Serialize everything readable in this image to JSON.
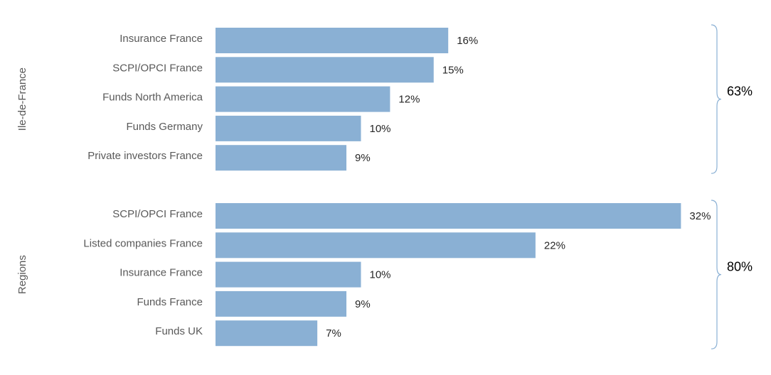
{
  "chart_data": [
    {
      "type": "bar",
      "orientation": "horizontal",
      "group": "Ile-de-France",
      "categories": [
        "Insurance France",
        "SCPI/OPCI France",
        "Funds North America",
        "Funds Germany",
        "Private investors France"
      ],
      "values": [
        16,
        15,
        12,
        10,
        9
      ],
      "value_labels": [
        "16%",
        "15%",
        "12%",
        "10%",
        "9%"
      ],
      "color": "#8ab0d4",
      "total_label": "63%"
    },
    {
      "type": "bar",
      "orientation": "horizontal",
      "group": "Regions",
      "categories": [
        "SCPI/OPCI France",
        "Listed companies France",
        "Insurance France",
        "Funds France",
        "Funds UK"
      ],
      "values": [
        32,
        22,
        10,
        9,
        7
      ],
      "value_labels": [
        "32%",
        "22%",
        "10%",
        "9%",
        "7%"
      ],
      "color": "#8ab0d4",
      "total_label": "80%"
    }
  ]
}
